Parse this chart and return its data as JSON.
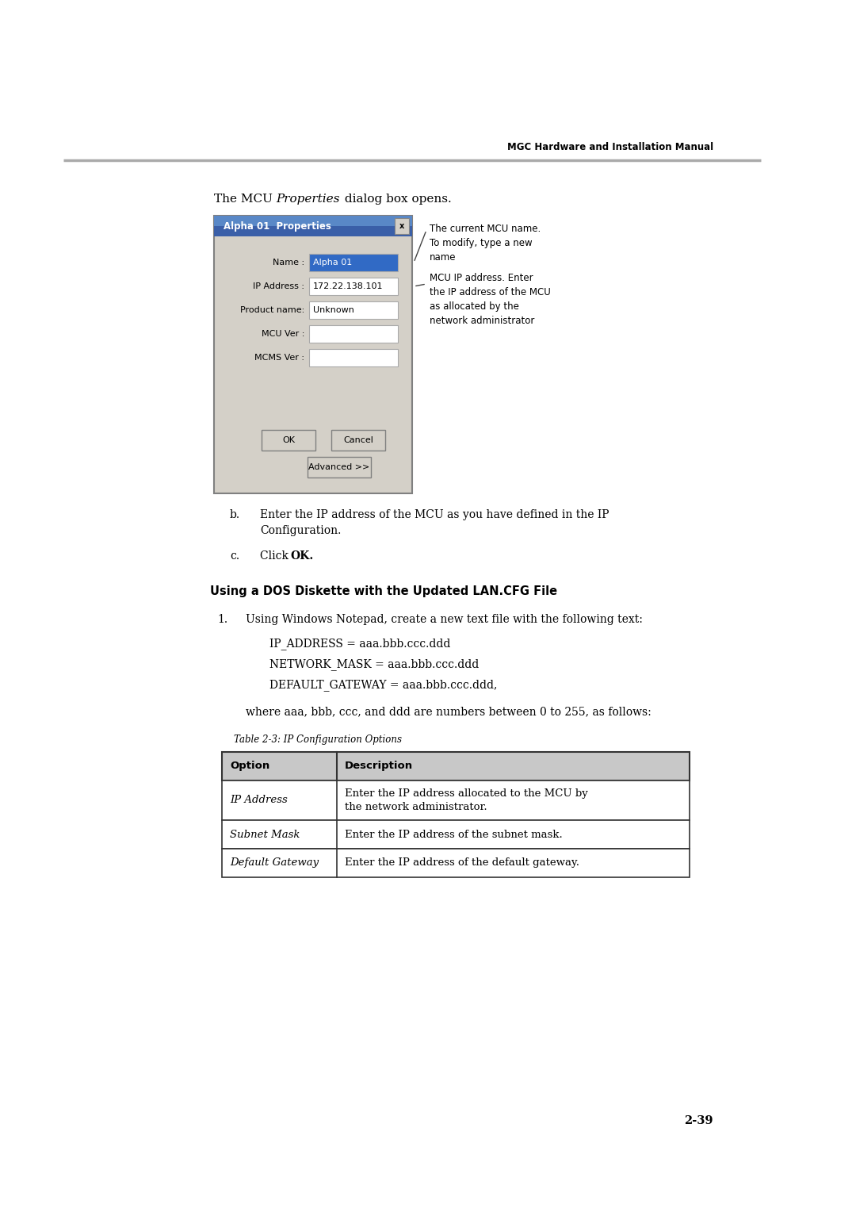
{
  "bg_color": "#ffffff",
  "header_text": "MGC Hardware and Installation Manual",
  "dialog": {
    "title": "Alpha 01  Properties",
    "title_bg_left": "#3a5fa8",
    "title_bg_right": "#6a9fd8",
    "bg_color": "#d4d0c8",
    "fields": [
      {
        "label": "Name :",
        "value": "Alpha 01",
        "value_bg": "#316ac5",
        "value_color": "#ffffff"
      },
      {
        "label": "IP Address :",
        "value": "172.22.138.101",
        "value_bg": "#ffffff",
        "value_color": "#000000"
      },
      {
        "label": "Product name:",
        "value": "Unknown",
        "value_bg": "#ffffff",
        "value_color": "#000000"
      },
      {
        "label": "MCU Ver :",
        "value": "",
        "value_bg": "#ffffff",
        "value_color": "#000000"
      },
      {
        "label": "MCMS Ver :",
        "value": "",
        "value_bg": "#ffffff",
        "value_color": "#000000"
      }
    ],
    "buttons": [
      "OK",
      "Cancel"
    ],
    "advanced_btn": "Advanced >>"
  },
  "ann1_text": "The current MCU name.\nTo modify, type a new\nname",
  "ann2_text": "MCU IP address. Enter\nthe IP address of the MCU\nas allocated by the\nnetwork administrator",
  "step_b_line1": "Enter the IP address of the MCU as you have defined in the IP",
  "step_b_line2": "Configuration.",
  "step_c_text": "Click ",
  "step_c_bold": "OK.",
  "section_heading": "Using a DOS Diskette with the Updated LAN.CFG File",
  "step1_text": "Using Windows Notepad, create a new text file with the following text:",
  "code_lines": [
    "IP_ADDRESS = aaa.bbb.ccc.ddd",
    "NETWORK_MASK = aaa.bbb.ccc.ddd",
    "DEFAULT_GATEWAY = aaa.bbb.ccc.ddd,"
  ],
  "where_text": "where aaa, bbb, ccc, and ddd are numbers between 0 to 255, as follows:",
  "table_caption": "Table 2-3: IP Configuration Options",
  "table_headers": [
    "Option",
    "Description"
  ],
  "table_rows": [
    [
      "IP Address",
      "Enter the IP address allocated to the MCU by\nthe network administrator."
    ],
    [
      "Subnet Mask",
      "Enter the IP address of the subnet mask."
    ],
    [
      "Default Gateway",
      "Enter the IP address of the default gateway."
    ]
  ],
  "page_number": "2-39"
}
